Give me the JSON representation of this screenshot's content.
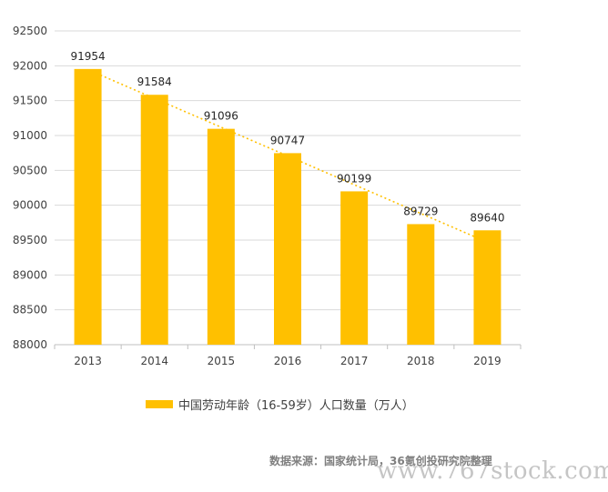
{
  "chart_data": {
    "type": "bar",
    "categories": [
      "2013",
      "2014",
      "2015",
      "2016",
      "2017",
      "2018",
      "2019"
    ],
    "values": [
      91954,
      91584,
      91096,
      90747,
      90199,
      89729,
      89640
    ],
    "series": [
      {
        "name": "中国劳动年龄（16-59岁）人口数量（万人）",
        "values": [
          91954,
          91584,
          91096,
          90747,
          90199,
          89729,
          89640
        ]
      }
    ],
    "ylim": [
      88000,
      92500
    ],
    "yticks": [
      "88000",
      "88500",
      "89000",
      "89500",
      "90000",
      "90500",
      "91000",
      "91500",
      "92000",
      "92500"
    ],
    "grid": true,
    "trendline": "dotted linear",
    "legend_position": "bottom",
    "colors": {
      "bar": "#FFC000",
      "trend": "#FFC000",
      "grid": "#d9d9d9"
    }
  },
  "legend": {
    "label": "中国劳动年龄（16-59岁）人口数量（万人）"
  },
  "source": "数据来源：国家统计局，36氪创投研究院整理",
  "watermark": "www.767stock.com"
}
